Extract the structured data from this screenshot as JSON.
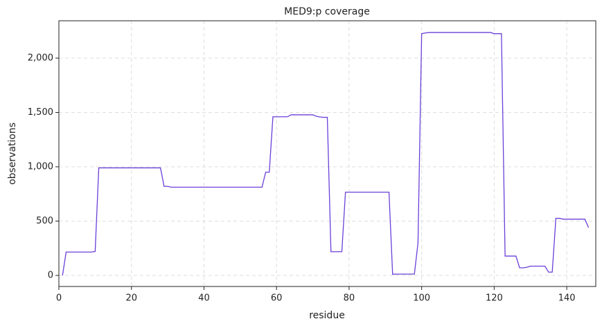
{
  "chart_data": {
    "type": "line",
    "title": "MED9:p coverage",
    "x_label": "residue",
    "y_label": "observations",
    "x": [
      1,
      2,
      3,
      4,
      5,
      6,
      7,
      8,
      9,
      10,
      11,
      12,
      13,
      14,
      15,
      16,
      17,
      18,
      19,
      20,
      21,
      22,
      23,
      24,
      25,
      26,
      27,
      28,
      29,
      30,
      31,
      32,
      33,
      34,
      35,
      36,
      37,
      38,
      39,
      40,
      41,
      42,
      43,
      44,
      45,
      46,
      47,
      48,
      49,
      50,
      51,
      52,
      53,
      54,
      55,
      56,
      57,
      58,
      59,
      60,
      61,
      62,
      63,
      64,
      65,
      66,
      67,
      68,
      69,
      70,
      71,
      72,
      73,
      74,
      75,
      76,
      77,
      78,
      79,
      80,
      81,
      82,
      83,
      84,
      85,
      86,
      87,
      88,
      89,
      90,
      91,
      92,
      93,
      94,
      95,
      96,
      97,
      98,
      99,
      100,
      101,
      102,
      103,
      104,
      105,
      106,
      107,
      108,
      109,
      110,
      111,
      112,
      113,
      114,
      115,
      116,
      117,
      118,
      119,
      120,
      121,
      122,
      123,
      124,
      125,
      126,
      127,
      128,
      129,
      130,
      131,
      132,
      133,
      134,
      135,
      136,
      137,
      138,
      139,
      140,
      141,
      142,
      143,
      144,
      145,
      146
    ],
    "series": [
      {
        "name": "coverage",
        "color": "#6a3fd8",
        "values": [
          0,
          215,
          215,
          215,
          215,
          215,
          215,
          215,
          215,
          220,
          990,
          990,
          990,
          990,
          990,
          990,
          990,
          990,
          990,
          990,
          990,
          990,
          990,
          990,
          990,
          990,
          990,
          990,
          820,
          820,
          812,
          812,
          812,
          812,
          812,
          812,
          812,
          812,
          812,
          812,
          812,
          812,
          812,
          812,
          812,
          812,
          812,
          812,
          812,
          812,
          812,
          812,
          812,
          812,
          812,
          812,
          950,
          950,
          1460,
          1460,
          1460,
          1460,
          1460,
          1478,
          1478,
          1478,
          1478,
          1478,
          1478,
          1478,
          1465,
          1458,
          1455,
          1455,
          218,
          218,
          218,
          218,
          766,
          766,
          766,
          766,
          766,
          766,
          766,
          766,
          766,
          766,
          766,
          766,
          766,
          10,
          12,
          12,
          12,
          12,
          12,
          12,
          300,
          2225,
          2232,
          2236,
          2236,
          2236,
          2236,
          2236,
          2236,
          2236,
          2236,
          2236,
          2236,
          2236,
          2236,
          2236,
          2236,
          2236,
          2236,
          2236,
          2236,
          2225,
          2225,
          2225,
          178,
          178,
          178,
          178,
          70,
          70,
          75,
          85,
          85,
          85,
          85,
          85,
          30,
          30,
          525,
          525,
          518,
          518,
          518,
          518,
          518,
          518,
          518,
          440
        ]
      }
    ],
    "xlim": [
      0,
      148
    ],
    "ylim": [
      -102,
      2344
    ],
    "xticks": [
      0,
      20,
      40,
      60,
      80,
      100,
      120,
      140
    ],
    "yticks": [
      0,
      500,
      {
        "value": 1000,
        "label": "1,000"
      },
      {
        "value": 1500,
        "label": "1,500"
      },
      {
        "value": 2000,
        "label": "2,000"
      }
    ],
    "grid": true
  }
}
